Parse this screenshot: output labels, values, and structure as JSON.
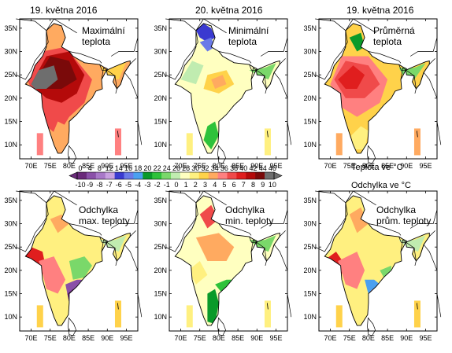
{
  "panels": [
    {
      "date": "19. května 2016",
      "label": "Maximální\nteplota",
      "kind": "max"
    },
    {
      "date": "20. května 2016",
      "label": "Minimální\nteplota",
      "kind": "min"
    },
    {
      "date": "19. května 2016",
      "label": "Průměrná\nteplota",
      "kind": "avg"
    },
    {
      "date": "",
      "label": "Odchylka\nmax. teploty",
      "kind": "amax"
    },
    {
      "date": "",
      "label": "Odchylka\nmin. teploty",
      "kind": "amin"
    },
    {
      "date": "",
      "label": "Odchylka\nprům. teploty",
      "kind": "aavg"
    }
  ],
  "axes": {
    "lat_ticks": [
      "35N",
      "30N",
      "25N",
      "20N",
      "15N",
      "10N"
    ],
    "lon_ticks": [
      "70E",
      "75E",
      "80E",
      "85E",
      "90E",
      "95E"
    ]
  },
  "colorbar": {
    "temp_ticks": [
      "0",
      "4",
      "8",
      "12",
      "14",
      "16",
      "18",
      "20",
      "22",
      "24",
      "26",
      "28",
      "30",
      "32",
      "34",
      "36",
      "38",
      "40",
      "42",
      "44",
      "46"
    ],
    "anom_ticks": [
      "-10",
      "-9",
      "-8",
      "-7",
      "-6",
      "-5",
      "-4",
      "-3",
      "-2",
      "-1",
      "0",
      "1",
      "2",
      "3",
      "4",
      "5",
      "6",
      "7",
      "8",
      "9",
      "10"
    ],
    "temp_label": "Teplota ve °C",
    "anom_label": "Odchylka ve °C",
    "colors": [
      "#6a2a7a",
      "#8a50a8",
      "#a878c8",
      "#c8a0e0",
      "#3a3ad0",
      "#6a7ae8",
      "#4aa0f0",
      "#0a9a2a",
      "#2ec23a",
      "#7ad86a",
      "#c0ecb0",
      "#ffffc0",
      "#fff080",
      "#ffd24a",
      "#ffaa60",
      "#ff8080",
      "#f04a4a",
      "#e01e1e",
      "#b40a0a",
      "#7a0a0a",
      "#6e6e6e"
    ]
  }
}
